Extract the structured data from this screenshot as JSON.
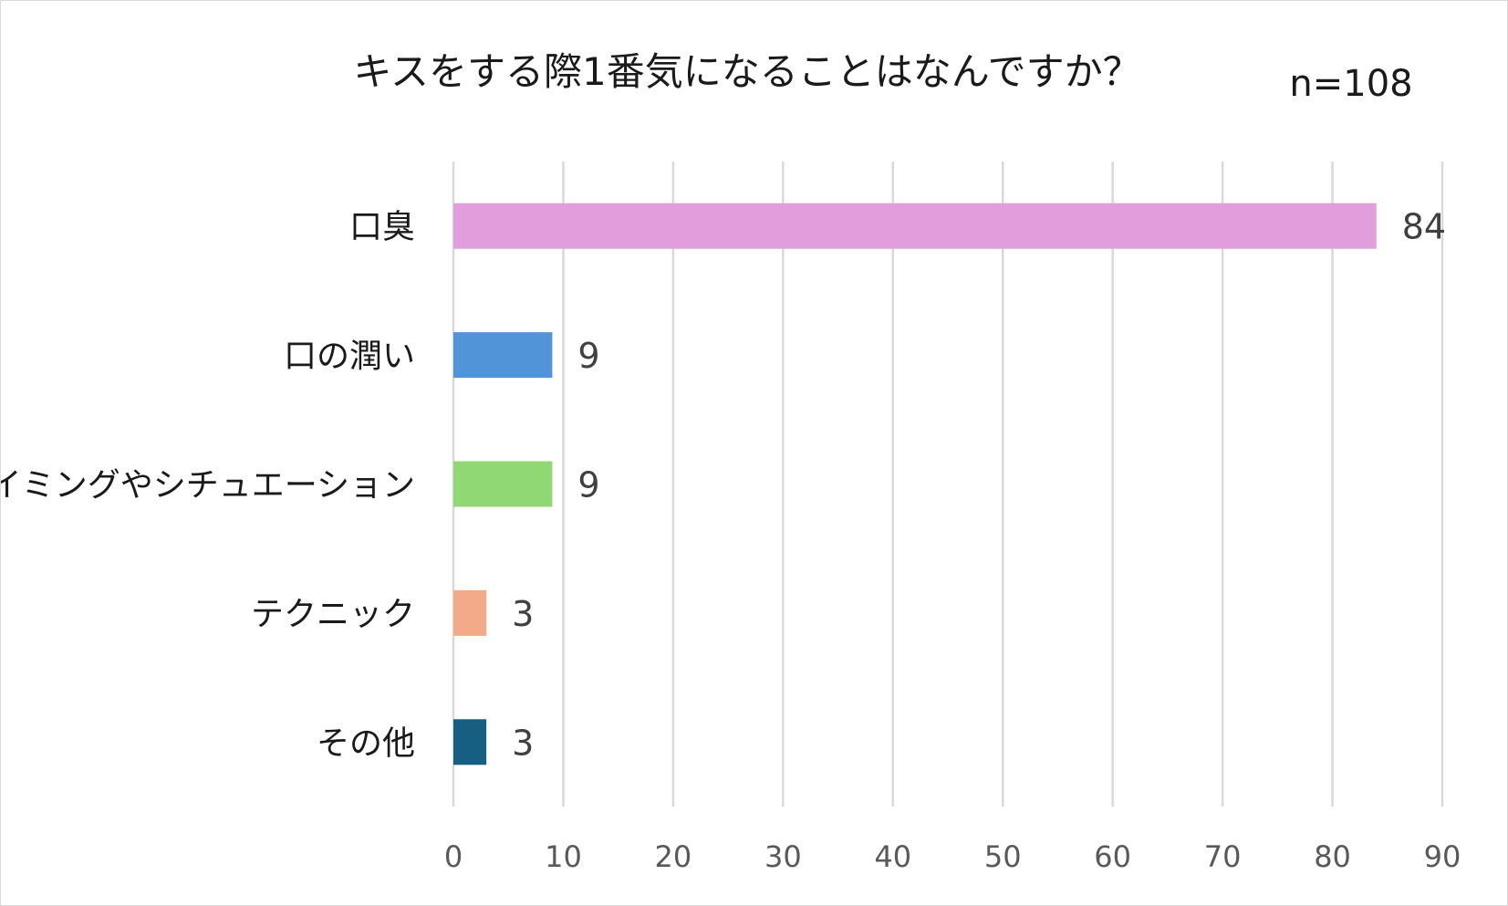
{
  "chart_data": {
    "type": "bar",
    "orientation": "horizontal",
    "title": "キスをする際1番気になることはなんですか？",
    "sample_size": "n=108",
    "categories": [
      "口臭",
      "口の潤い",
      "タイミングやシチュエーション",
      "テクニック",
      "その他"
    ],
    "values": [
      84,
      9,
      9,
      3,
      3
    ],
    "colors": [
      "#e29edc",
      "#5294d8",
      "#90d874",
      "#f2ab86",
      "#165e82"
    ],
    "xlim": [
      0,
      90
    ],
    "xticks": [
      0,
      10,
      20,
      30,
      40,
      50,
      60,
      70,
      80,
      90
    ],
    "xlabel": "",
    "ylabel": "",
    "grid": true,
    "data_labels": true,
    "legend": "none"
  }
}
